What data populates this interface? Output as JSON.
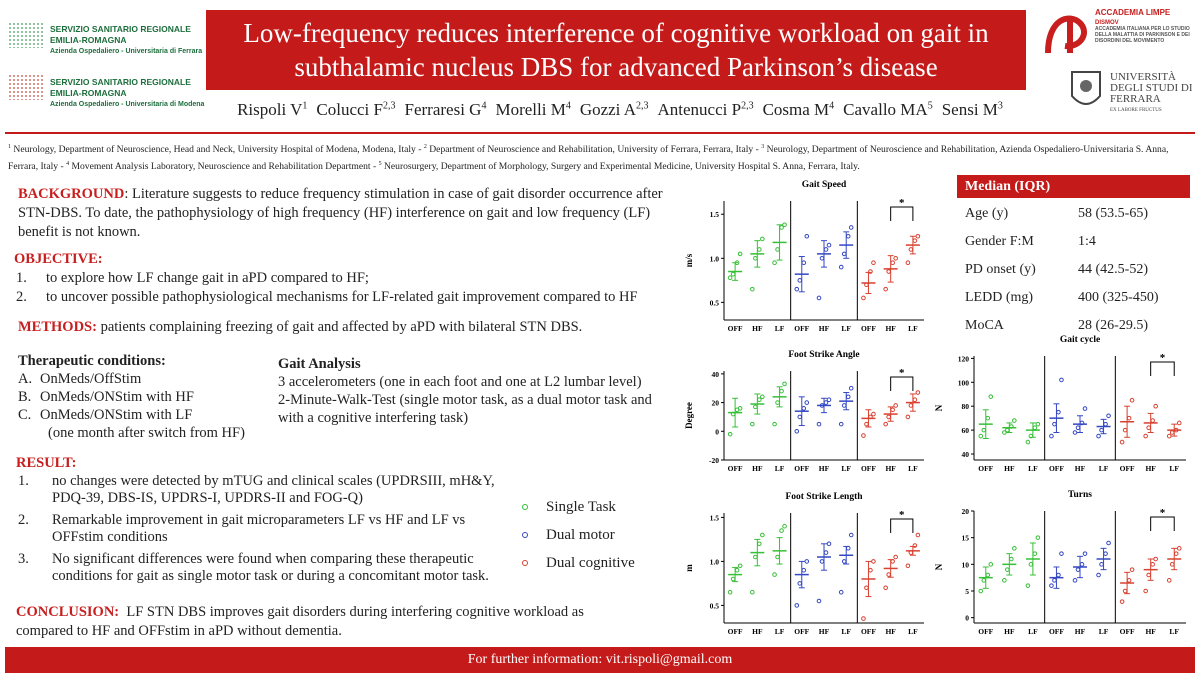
{
  "logos": {
    "left": [
      {
        "line1": "SERVIZIO SANITARIO REGIONALE",
        "line2": "EMILIA-ROMAGNA",
        "line3": "Azienda Ospedaliero - Universitaria di Ferrara"
      },
      {
        "line1": "SERVIZIO SANITARIO REGIONALE",
        "line2": "EMILIA-ROMAGNA",
        "line3": "Azienda Ospedaliero - Universitaria di Modena"
      }
    ],
    "right": {
      "academy": "ACCADEMIA LIMPE",
      "academy_sub": "DISMOV",
      "academy_desc": "ACCADEMIA ITALIANA PER LO STUDIO DELLA MALATTIA DI PARKINSON E DEI DISORDINI DEL MOVIMENTO",
      "university": "UNIVERSITÀ DEGLI STUDI DI FERRARA",
      "motto": "EX LABORE FRUCTUS"
    }
  },
  "header": {
    "title": "Low-frequency reduces interference of cognitive workload on gait in subthalamic nucleus DBS for advanced Parkinson’s disease",
    "authors": [
      {
        "name": "Rispoli V",
        "sup": "1"
      },
      {
        "name": "Colucci F",
        "sup": "2,3"
      },
      {
        "name": "Ferraresi G",
        "sup": "4"
      },
      {
        "name": "Morelli M",
        "sup": "4"
      },
      {
        "name": "Gozzi A",
        "sup": "2,3"
      },
      {
        "name": "Antenucci P",
        "sup": "2,3"
      },
      {
        "name": "Cosma M",
        "sup": "4"
      },
      {
        "name": "Cavallo MA",
        "sup": "5"
      },
      {
        "name": "Sensi M",
        "sup": "3"
      }
    ],
    "affiliations": [
      {
        "sup": "1",
        "text": " Neurology, Department of Neuroscience, Head and Neck, University Hospital of Modena, Modena, Italy - "
      },
      {
        "sup": "2",
        "text": " Department of Neuroscience and Rehabilitation, University of Ferrara, Ferrara, Italy - "
      },
      {
        "sup": "3",
        "text": " Neurology, Department of Neuroscience and Rehabilitation, Azienda Ospedaliero-Universitaria S. Anna, Ferrara, Italy - "
      },
      {
        "sup": "4",
        "text": " Movement Analysis Laboratory, Neuroscience and Rehabilitation Department - "
      },
      {
        "sup": "5",
        "text": " Neurosurgery, Department of Morphology, Surgery and Experimental Medicine, University Hospital S. Anna, Ferrara, Italy."
      }
    ]
  },
  "background": {
    "label": "BACKGROUND",
    "text": ": Literature suggests to reduce frequency stimulation in case of gait disorder occurrence after STN-DBS. To date, the pathophysiology of high frequency (HF) interference on gait and low frequency (LF) benefit is not known."
  },
  "objective": {
    "label": "OBJECTIVE:",
    "items": [
      {
        "n": "1.",
        "text": "to explore how LF change gait in aPD compared to HF;"
      },
      {
        "n": "2.",
        "text": "to uncover possible pathophysiological mechanisms for LF-related gait improvement compared to HF"
      }
    ]
  },
  "methods": {
    "label": "METHODS:",
    "text": " patients complaining freezing of gait and affected by aPD with bilateral STN DBS."
  },
  "therapeutic_conditions": {
    "title": "Therapeutic conditions:",
    "items": [
      {
        "n": "A.",
        "text": "OnMeds/OffStim"
      },
      {
        "n": "B.",
        "text": "OnMeds/ONStim with HF"
      },
      {
        "n": "C.",
        "text": "OnMeds/ONStim with LF"
      }
    ],
    "note": "(one month after switch from HF)"
  },
  "gait_analysis": {
    "title": "Gait Analysis",
    "lines": [
      "3 accelerometers (one in each foot and one at L2 lumbar level)",
      "2-Minute-Walk-Test (single motor task, as a dual motor task and with a cognitive interfering task)"
    ]
  },
  "result": {
    "label": "RESULT:",
    "items": [
      {
        "n": "1.",
        "text": "no changes were detected by mTUG and clinical scales (UPDRSIII, mH&Y, PDQ-39, DBS-IS, UPDRS-I, UPDRS-II and FOG-Q)"
      },
      {
        "n": "2.",
        "text": "Remarkable improvement in gait microparameters LF vs HF and LF vs OFFstim conditions"
      },
      {
        "n": "3.",
        "text": "No significant differences were found when comparing these therapeutic conditions for gait as single motor task or during a concomitant motor task."
      }
    ]
  },
  "conclusion": {
    "label": "CONCLUSION:",
    "text": "  LF STN DBS improves gait disorders during interfering cognitive workload as compared to HF and OFFstim in aPD without dementia."
  },
  "legend": [
    {
      "name": "Single Task",
      "color": "#35c035"
    },
    {
      "name": "Dual motor",
      "color": "#3447c4"
    },
    {
      "name": "Dual cognitive",
      "color": "#d8402f"
    }
  ],
  "table": {
    "header": "Median (IQR)",
    "rows": [
      [
        "Age (y)",
        "58 (53.5-65)"
      ],
      [
        "Gender F:M",
        "1:4"
      ],
      [
        "PD onset (y)",
        "44 (42.5-52)"
      ],
      [
        "LEDD (mg)",
        "400 (325-450)"
      ],
      [
        "MoCA",
        "28 (26-29.5)"
      ]
    ]
  },
  "charts": [
    {
      "title": "Gait Speed",
      "ylabel": "m/s",
      "categories": [
        "OFF",
        "HF",
        "LF"
      ],
      "ylim": [
        0.3,
        1.65
      ],
      "yticks": [
        0.5,
        {
          "value": 1,
          "label": "1.0"
        },
        1.5
      ],
      "significance": "*",
      "series": [
        {
          "points": [
            [
              0.78,
              0.82,
              0.95,
              1.05
            ],
            [
              0.65,
              1.0,
              1.1,
              1.22
            ],
            [
              0.95,
              1.1,
              1.35,
              1.38
            ]
          ],
          "means": [
            0.85,
            1.05,
            1.18
          ],
          "errors": [
            0.1,
            0.15,
            0.2
          ]
        },
        {
          "points": [
            [
              0.65,
              0.75,
              0.95,
              1.25
            ],
            [
              0.55,
              1.0,
              1.1,
              1.15
            ],
            [
              0.9,
              1.05,
              1.25,
              1.35
            ]
          ],
          "means": [
            0.82,
            1.05,
            1.15
          ],
          "errors": [
            0.2,
            0.15,
            0.15
          ]
        },
        {
          "points": [
            [
              0.55,
              0.7,
              0.85,
              0.95
            ],
            [
              0.65,
              0.85,
              0.95,
              1.0
            ],
            [
              0.95,
              1.1,
              1.2,
              1.25
            ]
          ],
          "means": [
            0.72,
            0.88,
            1.15
          ],
          "errors": [
            0.12,
            0.15,
            0.1
          ]
        }
      ]
    },
    {
      "title": "Foot Strike Angle",
      "ylabel": "Degree",
      "categories": [
        "OFF",
        "HF",
        "LF"
      ],
      "ylim": [
        -20,
        42
      ],
      "yticks": [
        -20,
        0,
        20,
        40
      ],
      "significance": "*",
      "series": [
        {
          "points": [
            [
              -2,
              12,
              15,
              16
            ],
            [
              5,
              17,
              22,
              24
            ],
            [
              5,
              20,
              28,
              33
            ]
          ],
          "means": [
            13,
            19,
            24
          ],
          "errors": [
            10,
            7,
            7
          ]
        },
        {
          "points": [
            [
              0,
              10,
              16,
              20
            ],
            [
              5,
              18,
              20,
              22
            ],
            [
              5,
              18,
              24,
              30
            ]
          ],
          "means": [
            14,
            18,
            21
          ],
          "errors": [
            10,
            5,
            6
          ]
        },
        {
          "points": [
            [
              -3,
              5,
              10,
              12
            ],
            [
              5,
              10,
              15,
              18
            ],
            [
              10,
              18,
              22,
              27
            ]
          ],
          "means": [
            9,
            12,
            20
          ],
          "errors": [
            6,
            5,
            6
          ]
        }
      ]
    },
    {
      "title": "Foot Strike Length",
      "ylabel": "m",
      "categories": [
        "OFF",
        "HF",
        "LF"
      ],
      "ylim": [
        0.3,
        1.55
      ],
      "yticks": [
        0.5,
        {
          "value": 1,
          "label": "1.0"
        },
        1.5
      ],
      "significance": "*",
      "series": [
        {
          "points": [
            [
              0.65,
              0.8,
              0.9,
              0.95
            ],
            [
              0.65,
              1.05,
              1.2,
              1.3
            ],
            [
              0.85,
              1.05,
              1.35,
              1.4
            ]
          ],
          "means": [
            0.85,
            1.1,
            1.12
          ],
          "errors": [
            0.08,
            0.15,
            0.15
          ]
        },
        {
          "points": [
            [
              0.5,
              0.75,
              0.9,
              1.0
            ],
            [
              0.55,
              1.0,
              1.1,
              1.2
            ],
            [
              0.65,
              1.0,
              1.15,
              1.3
            ]
          ],
          "means": [
            0.85,
            1.05,
            1.07
          ],
          "errors": [
            0.15,
            0.15,
            0.1
          ]
        },
        {
          "points": [
            [
              0.35,
              0.7,
              0.9,
              1.0
            ],
            [
              0.7,
              0.85,
              1.0,
              1.05
            ],
            [
              0.95,
              1.1,
              1.18,
              1.3
            ]
          ],
          "means": [
            0.8,
            0.92,
            1.12
          ],
          "errors": [
            0.2,
            0.1,
            0.05
          ]
        }
      ]
    },
    {
      "title": "Gait cycle",
      "ylabel": "N",
      "categories": [
        "OFF",
        "HF",
        "LF"
      ],
      "ylim": [
        35,
        122
      ],
      "yticks": [
        40,
        60,
        80,
        100,
        120
      ],
      "significance": "*",
      "series": [
        {
          "points": [
            [
              55,
              60,
              70,
              88
            ],
            [
              58,
              60,
              63,
              68
            ],
            [
              50,
              55,
              62,
              65
            ]
          ],
          "means": [
            65,
            62,
            60
          ],
          "errors": [
            12,
            4,
            6
          ]
        },
        {
          "points": [
            [
              55,
              65,
              75,
              102
            ],
            [
              58,
              62,
              66,
              78
            ],
            [
              55,
              60,
              65,
              72
            ]
          ],
          "means": [
            70,
            65,
            63
          ],
          "errors": [
            12,
            7,
            6
          ]
        },
        {
          "points": [
            [
              50,
              60,
              70,
              85
            ],
            [
              55,
              62,
              68,
              80
            ],
            [
              55,
              58,
              60,
              66
            ]
          ],
          "means": [
            67,
            66,
            60
          ],
          "errors": [
            13,
            8,
            5
          ]
        }
      ]
    },
    {
      "title": "Turns",
      "ylabel": "N",
      "categories": [
        "OFF",
        "HF",
        "LF"
      ],
      "ylim": [
        -1,
        20
      ],
      "yticks": [
        0,
        5,
        10,
        15,
        20
      ],
      "significance": "*",
      "series": [
        {
          "points": [
            [
              5,
              7,
              8,
              10
            ],
            [
              7,
              9,
              11,
              13
            ],
            [
              6,
              10,
              12,
              15
            ]
          ],
          "means": [
            7.5,
            10,
            11
          ],
          "errors": [
            2,
            2,
            3
          ]
        },
        {
          "points": [
            [
              6,
              7,
              8,
              12
            ],
            [
              7,
              9,
              10,
              12
            ],
            [
              8,
              10,
              12,
              14
            ]
          ],
          "means": [
            7.5,
            9.5,
            11
          ],
          "errors": [
            2,
            2,
            2
          ]
        },
        {
          "points": [
            [
              3,
              5,
              7,
              9
            ],
            [
              5,
              8,
              10,
              11
            ],
            [
              7,
              10,
              12,
              13
            ]
          ],
          "means": [
            6.5,
            9,
            11
          ],
          "errors": [
            2,
            2,
            2
          ]
        }
      ]
    }
  ],
  "footer": "For further information: vit.rispoli@gmail.com"
}
